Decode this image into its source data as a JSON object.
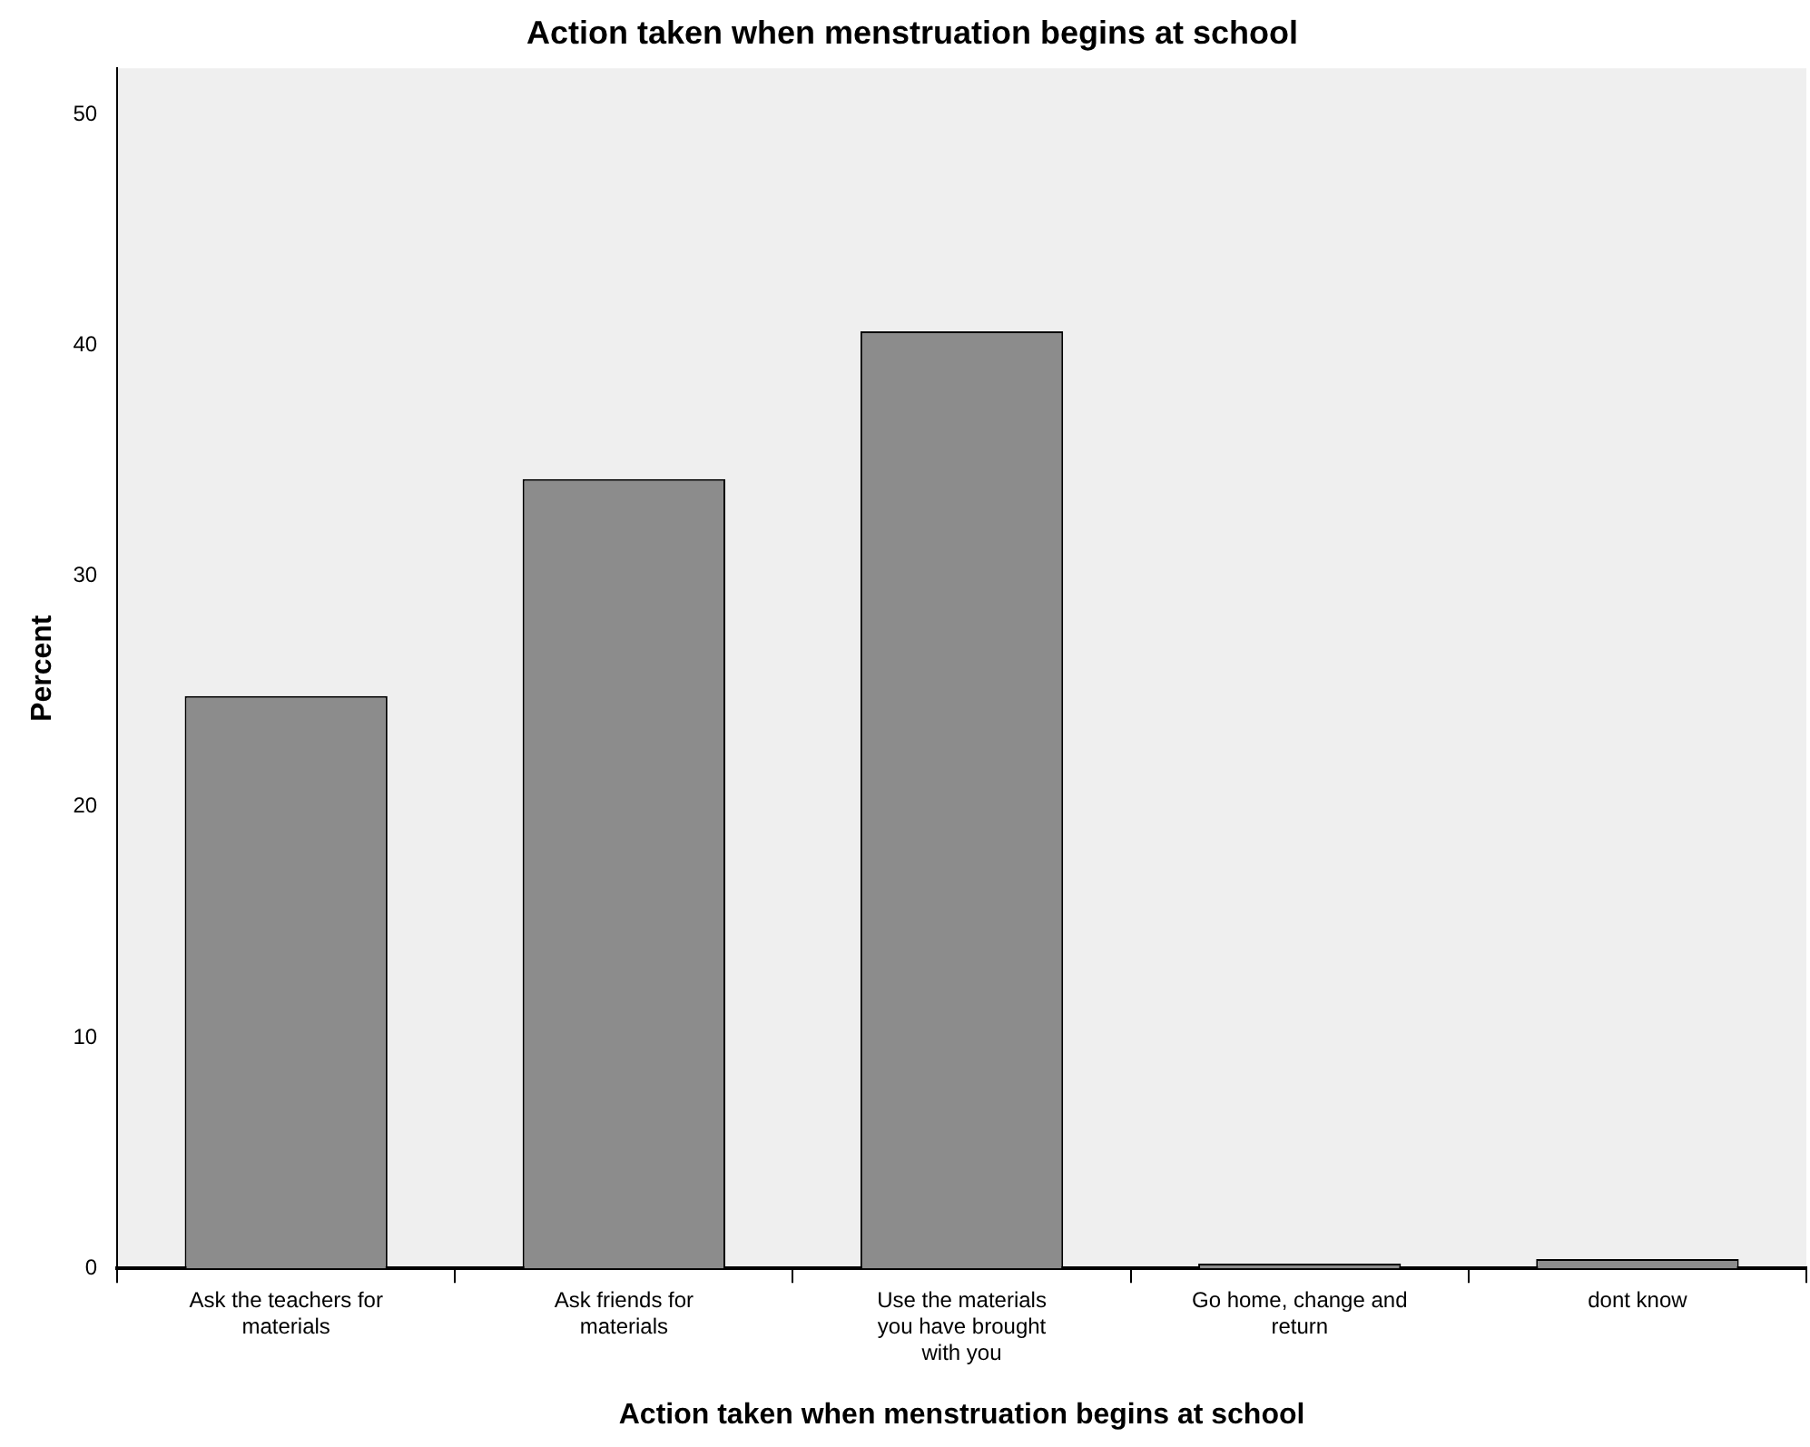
{
  "chart_data": {
    "type": "bar",
    "title": "Action taken when menstruation begins at school",
    "xlabel": "Action taken when menstruation begins at school",
    "ylabel": "Percent",
    "categories": [
      "Ask the teachers for materials",
      "Ask friends for materials",
      "Use the materials you have brought with you",
      "Go home, change and return",
      "dont know"
    ],
    "values": [
      24.8,
      34.2,
      40.6,
      0.2,
      0.4
    ],
    "color": "#8c8c8c",
    "ylim": [
      0,
      52
    ],
    "yticks": [
      0,
      10,
      20,
      30,
      40,
      50
    ],
    "grid": false,
    "legend": false
  }
}
